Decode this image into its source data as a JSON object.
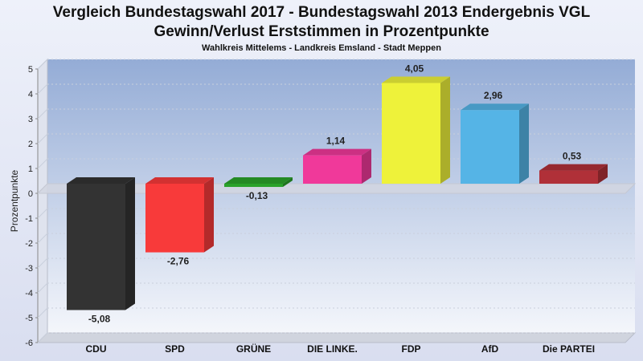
{
  "chart_data": {
    "type": "bar",
    "title_line1": "Vergleich Bundestagswahl 2017 - Bundestagswahl 2013 Endergebnis VGL",
    "title_line2": "Gewinn/Verlust Erststimmen in Prozentpunkte",
    "subtitle": "Wahlkreis Mittelems - Landkreis Emsland - Stadt Meppen",
    "xlabel": "",
    "ylabel": "Prozentpunkte",
    "ylim": [
      -6,
      5
    ],
    "yticks": [
      5,
      4,
      3,
      2,
      1,
      0,
      -1,
      -2,
      -3,
      -4,
      -5,
      -6
    ],
    "grid": true,
    "categories": [
      "CDU",
      "SPD",
      "GRÜNE",
      "DIE LINKE.",
      "FDP",
      "AfD",
      "Die PARTEI"
    ],
    "values": [
      -5.08,
      -2.76,
      -0.13,
      1.14,
      4.05,
      2.96,
      0.53
    ],
    "value_labels": [
      "-5,08",
      "-2,76",
      "-0,13",
      "1,14",
      "4,05",
      "2,96",
      "0,53"
    ],
    "colors": [
      "#333333",
      "#f83a3a",
      "#2aa22a",
      "#f0399a",
      "#eef23a",
      "#55b4e6",
      "#b03038"
    ],
    "background_colors": {
      "plot_top": "#9ab0d8",
      "plot_bottom": "#f3f5fb"
    }
  }
}
